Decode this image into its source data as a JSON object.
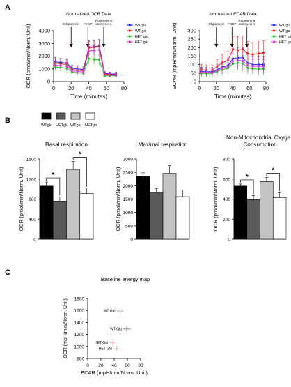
{
  "panels": {
    "a": "A",
    "b": "B",
    "c": "C"
  },
  "colors": {
    "wt_glu": "#1f1ff2",
    "wt_gal": "#ee2020",
    "het_glu": "#22c322",
    "het_gal": "#d63ad6",
    "bar_wtglu": "#000000",
    "bar_hetglu": "#5a5a5a",
    "bar_wtgal": "#c4c4c4",
    "bar_hetgal": "#ffffff",
    "cross_wt_gal": "#999999",
    "cross_wt_glu": "#777777",
    "cross_het_gal": "#f4a6a6",
    "cross_het_glu": "#f4a6a6"
  },
  "chart_data": [
    {
      "id": "ocr",
      "type": "line",
      "title": "Normalized OCR Data",
      "xlabel": "Time (minutes)",
      "ylabel": "OCR (pmol/min/Norm. Unit)",
      "xlim": [
        0,
        80
      ],
      "ylim": [
        0,
        4000
      ],
      "xticks": [
        "0",
        "20",
        "40",
        "60",
        "80"
      ],
      "yticks": [
        "0",
        "1000",
        "2000",
        "3000",
        "4000"
      ],
      "injections": [
        {
          "label": "Oligomycin",
          "x": 20
        },
        {
          "label": "FCCP",
          "x": 39
        },
        {
          "label": "Rotenone & antimycin A",
          "x": 57
        }
      ],
      "x": [
        2,
        8,
        15,
        21,
        27,
        34,
        40,
        46,
        52,
        58,
        64,
        71
      ],
      "series": [
        {
          "name": "WT glu",
          "color_key": "wt_glu",
          "values": [
            1550,
            1500,
            1450,
            1050,
            1000,
            950,
            2700,
            2750,
            2800,
            650,
            600,
            600
          ],
          "errors": [
            350,
            350,
            350,
            250,
            250,
            250,
            500,
            500,
            500,
            150,
            150,
            150
          ]
        },
        {
          "name": "WT gal",
          "color_key": "wt_gal",
          "values": [
            1450,
            1400,
            1350,
            950,
            900,
            850,
            2650,
            2700,
            2750,
            600,
            550,
            550
          ],
          "errors": [
            350,
            350,
            350,
            250,
            250,
            250,
            500,
            500,
            500,
            150,
            150,
            150
          ]
        },
        {
          "name": "HET glu",
          "color_key": "het_glu",
          "values": [
            1150,
            1100,
            1050,
            750,
            700,
            650,
            1800,
            1750,
            1700,
            450,
            450,
            450
          ],
          "errors": [
            300,
            300,
            300,
            200,
            200,
            200,
            400,
            400,
            400,
            120,
            120,
            120
          ]
        },
        {
          "name": "HET gal",
          "color_key": "het_gal",
          "values": [
            1300,
            1250,
            1200,
            850,
            800,
            750,
            2400,
            2450,
            2500,
            550,
            500,
            500
          ],
          "errors": [
            320,
            320,
            320,
            220,
            220,
            220,
            450,
            450,
            450,
            130,
            130,
            130
          ]
        }
      ],
      "legend": "right"
    },
    {
      "id": "ecar",
      "type": "line",
      "title": "Normalized ECAR Data",
      "xlabel": "Time (minutes)",
      "ylabel": "ECAR (mpH/min/Norm. Unit)",
      "xlim": [
        0,
        80
      ],
      "ylim": [
        0,
        300
      ],
      "xticks": [
        "0",
        "20",
        "40",
        "60",
        "80"
      ],
      "yticks": [
        "0",
        "50",
        "100",
        "150",
        "200",
        "250",
        "300"
      ],
      "injections": [
        {
          "label": "Oligomycin",
          "x": 20
        },
        {
          "label": "FCCP",
          "x": 39
        },
        {
          "label": "Rotenone & antimycin A",
          "x": 57
        }
      ],
      "x": [
        2,
        8,
        15,
        21,
        27,
        34,
        40,
        46,
        52,
        58,
        64,
        71,
        77
      ],
      "series": [
        {
          "name": "WT glu",
          "color_key": "wt_glu",
          "values": [
            60,
            58,
            58,
            70,
            85,
            95,
            135,
            140,
            140,
            110,
            100,
            100,
            100
          ],
          "errors": [
            25,
            25,
            25,
            30,
            35,
            40,
            60,
            60,
            60,
            50,
            45,
            45,
            45
          ]
        },
        {
          "name": "WT gal",
          "color_key": "wt_gal",
          "values": [
            70,
            68,
            68,
            90,
            110,
            125,
            190,
            185,
            190,
            165,
            160,
            165,
            170
          ],
          "errors": [
            30,
            30,
            30,
            40,
            50,
            55,
            80,
            80,
            80,
            70,
            70,
            70,
            70
          ]
        },
        {
          "name": "HET glu",
          "color_key": "het_glu",
          "values": [
            50,
            48,
            48,
            60,
            70,
            78,
            105,
            110,
            108,
            80,
            75,
            75,
            75
          ],
          "errors": [
            20,
            20,
            20,
            25,
            30,
            35,
            45,
            45,
            45,
            35,
            35,
            35,
            35
          ]
        },
        {
          "name": "HET gal",
          "color_key": "het_gal",
          "values": [
            55,
            53,
            53,
            65,
            78,
            88,
            120,
            125,
            123,
            95,
            90,
            90,
            90
          ],
          "errors": [
            22,
            22,
            22,
            28,
            32,
            38,
            50,
            50,
            50,
            40,
            40,
            40,
            40
          ]
        }
      ],
      "legend": "right"
    },
    {
      "id": "basal",
      "type": "bar",
      "title": "Basal respiration",
      "ylabel": "OCR (pmol/min/Norm. Unit)",
      "ylim": [
        0,
        1600
      ],
      "yticks": [
        "0",
        "400",
        "800",
        "1200",
        "1600"
      ],
      "categories": [
        "WTglu",
        "HETglu",
        "WTgal",
        "HETgal"
      ],
      "values": [
        1060,
        760,
        1390,
        910
      ],
      "errors": [
        80,
        80,
        160,
        110
      ],
      "significance": [
        {
          "from": 0,
          "to": 1,
          "label": "*"
        },
        {
          "from": 2,
          "to": 3,
          "label": "*"
        }
      ]
    },
    {
      "id": "maximal",
      "type": "bar",
      "title": "Maximal respiration",
      "ylabel": "OCR (pmol/min/Norm. Unit)",
      "ylim": [
        0,
        3000
      ],
      "yticks": [
        "0",
        "500",
        "1000",
        "1500",
        "2000",
        "2500",
        "3000"
      ],
      "categories": [
        "WTglu",
        "HETglu",
        "WTgal",
        "HETgal"
      ],
      "values": [
        2350,
        1750,
        2460,
        1590
      ],
      "errors": [
        130,
        150,
        290,
        250
      ],
      "significance": []
    },
    {
      "id": "nonmito",
      "type": "bar",
      "title": "Non-Mitochondrial Oxygen Consumption",
      "ylabel": "OCR (pmol/min/Norm. Unit)",
      "ylim": [
        0,
        800
      ],
      "yticks": [
        "0",
        "200",
        "400",
        "600",
        "800"
      ],
      "categories": [
        "WTglu",
        "HETglu",
        "WTgal",
        "HETgal"
      ],
      "values": [
        530,
        395,
        575,
        415
      ],
      "errors": [
        20,
        40,
        40,
        50
      ],
      "significance": [
        {
          "from": 0,
          "to": 1,
          "label": "*"
        },
        {
          "from": 2,
          "to": 3,
          "label": "*"
        }
      ]
    },
    {
      "id": "energy",
      "type": "scatter",
      "title": "Baseline energy map",
      "xlabel": "ECAR (mpH/min/Norm. Unit)",
      "ylabel": "OCR (mpH/min/Norm. Unit)",
      "xlim": [
        0,
        80
      ],
      "ylim": [
        800,
        1800
      ],
      "xticks": [
        "0",
        "20",
        "40",
        "60",
        "80"
      ],
      "yticks": [
        "800",
        "1000",
        "1200",
        "1400",
        "1600",
        "1800"
      ],
      "points": [
        {
          "label": "WT Gal",
          "x": 49,
          "y": 1590,
          "xerr": 5,
          "yerr": 60,
          "color_key": "cross_wt_gal",
          "label_side": "left"
        },
        {
          "label": "WT Glu",
          "x": 59,
          "y": 1290,
          "xerr": 6,
          "yerr": 45,
          "color_key": "cross_wt_glu",
          "label_side": "left"
        },
        {
          "label": "HET Gal",
          "x": 38,
          "y": 1060,
          "xerr": 4,
          "yerr": 60,
          "color_key": "cross_het_gal",
          "label_side": "left"
        },
        {
          "label": "HET Glu",
          "x": 44,
          "y": 960,
          "xerr": 4,
          "yerr": 50,
          "color_key": "cross_het_glu",
          "label_side": "left"
        }
      ]
    }
  ]
}
